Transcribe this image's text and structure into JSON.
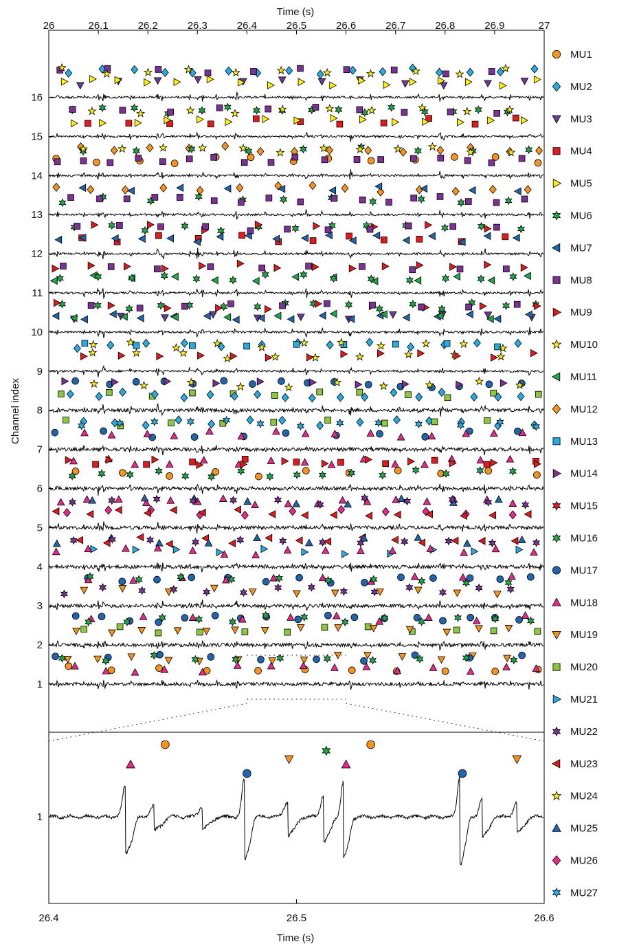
{
  "chart_data": [
    {
      "type": "scatter",
      "panel": "top",
      "title": "",
      "xlabel": "Time (s)",
      "ylabel": "Channel index",
      "xlim": [
        26,
        27
      ],
      "ylim": [
        0.5,
        17.2
      ],
      "x_ticks": [
        "26",
        "26.1",
        "26.2",
        "26.3",
        "26.4",
        "26.5",
        "26.6",
        "26.7",
        "26.8",
        "26.9",
        "27"
      ],
      "y_ticks": [
        "1",
        "2",
        "3",
        "4",
        "5",
        "6",
        "7",
        "8",
        "9",
        "10",
        "11",
        "12",
        "13",
        "14",
        "15",
        "16"
      ],
      "traces": "raw EMG signal per channel, channels 1-16",
      "markers": "motor unit discharge times drawn above each channel trace",
      "legend_position": "right",
      "series": [
        {
          "name": "MU1",
          "marker": "circle",
          "color": "#F7941D"
        },
        {
          "name": "MU2",
          "marker": "diamond",
          "color": "#29ABE2"
        },
        {
          "name": "MU3",
          "marker": "triangle-down",
          "color": "#6A3D9A"
        },
        {
          "name": "MU4",
          "marker": "square",
          "color": "#E31A1C"
        },
        {
          "name": "MU5",
          "marker": "triangle-right",
          "color": "#FFF200"
        },
        {
          "name": "MU6",
          "marker": "hexagram",
          "color": "#1FA846"
        },
        {
          "name": "MU7",
          "marker": "triangle-left",
          "color": "#2166AC"
        },
        {
          "name": "MU8",
          "marker": "square",
          "color": "#7B3294"
        },
        {
          "name": "MU9",
          "marker": "triangle-right",
          "color": "#E31A1C"
        },
        {
          "name": "MU10",
          "marker": "pentagram",
          "color": "#FFF200"
        },
        {
          "name": "MU11",
          "marker": "triangle-left",
          "color": "#1FA846"
        },
        {
          "name": "MU12",
          "marker": "diamond",
          "color": "#F7941D"
        },
        {
          "name": "MU13",
          "marker": "square",
          "color": "#29ABE2"
        },
        {
          "name": "MU14",
          "marker": "triangle-right",
          "color": "#7B3294"
        },
        {
          "name": "MU15",
          "marker": "hexagram",
          "color": "#E31A1C"
        },
        {
          "name": "MU16",
          "marker": "hexagram",
          "color": "#1FA846"
        },
        {
          "name": "MU17",
          "marker": "circle",
          "color": "#2166AC"
        },
        {
          "name": "MU18",
          "marker": "triangle-up",
          "color": "#E7298A"
        },
        {
          "name": "MU19",
          "marker": "triangle-down",
          "color": "#F7941D"
        },
        {
          "name": "MU20",
          "marker": "square",
          "color": "#8DC63F"
        },
        {
          "name": "MU21",
          "marker": "triangle-right",
          "color": "#29ABE2"
        },
        {
          "name": "MU22",
          "marker": "hexagram",
          "color": "#7B3294"
        },
        {
          "name": "MU23",
          "marker": "triangle-left",
          "color": "#E31A1C"
        },
        {
          "name": "MU24",
          "marker": "pentagram",
          "color": "#FFF200"
        },
        {
          "name": "MU25",
          "marker": "triangle-up",
          "color": "#2166AC"
        },
        {
          "name": "MU26",
          "marker": "diamond",
          "color": "#E7298A"
        },
        {
          "name": "MU27",
          "marker": "hexagram",
          "color": "#29ABE2"
        }
      ]
    },
    {
      "type": "scatter",
      "panel": "bottom-zoom",
      "title": "",
      "xlabel": "Time (s)",
      "ylabel": "",
      "xlim": [
        26.4,
        26.6
      ],
      "x_ticks": [
        "26.4",
        "26.5",
        "26.6"
      ],
      "y_ticks": [
        "1"
      ],
      "traces": "zoomed raw EMG of channel 1",
      "markers": [
        {
          "series": "MU18",
          "x": 26.433
        },
        {
          "series": "MU1",
          "x": 26.447
        },
        {
          "series": "MU17",
          "x": 26.48
        },
        {
          "series": "MU19",
          "x": 26.497
        },
        {
          "series": "MU16",
          "x": 26.512
        },
        {
          "series": "MU18",
          "x": 26.52
        },
        {
          "series": "MU1",
          "x": 26.53
        },
        {
          "series": "MU17",
          "x": 26.567
        },
        {
          "series": "MU19",
          "x": 26.589
        }
      ]
    }
  ]
}
